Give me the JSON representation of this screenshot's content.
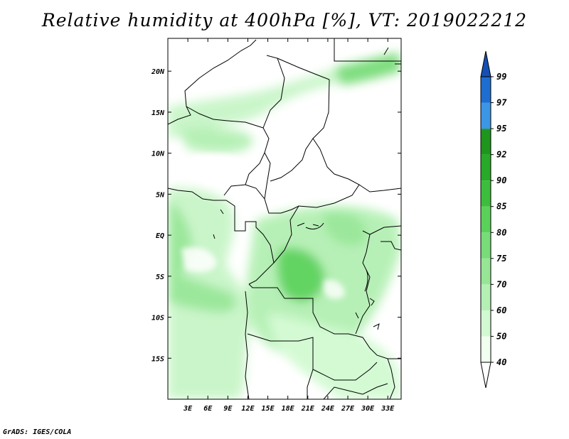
{
  "title": "Relative humidity at 400hPa [%], VT: 2019022212",
  "credit": "GrADS: IGES/COLA",
  "map": {
    "lon_range": [
      0,
      35
    ],
    "lat_range": [
      -20,
      24
    ],
    "lon_ticks": [
      "3E",
      "6E",
      "9E",
      "12E",
      "15E",
      "18E",
      "21E",
      "24E",
      "27E",
      "30E",
      "33E"
    ],
    "lat_ticks": [
      "20N",
      "15N",
      "10N",
      "5N",
      "EQ",
      "5S",
      "10S",
      "15S"
    ]
  },
  "colorbar": {
    "labels": [
      "40",
      "50",
      "60",
      "70",
      "75",
      "80",
      "85",
      "90",
      "92",
      "95",
      "97",
      "99"
    ],
    "colors": [
      "#f0fff0",
      "#d2fad2",
      "#b4f0b4",
      "#96e696",
      "#78dc78",
      "#5ad25a",
      "#3cbe3c",
      "#28aa28",
      "#1e961e",
      "#3c96e6",
      "#1e6ed2",
      "#1450b4"
    ]
  }
}
